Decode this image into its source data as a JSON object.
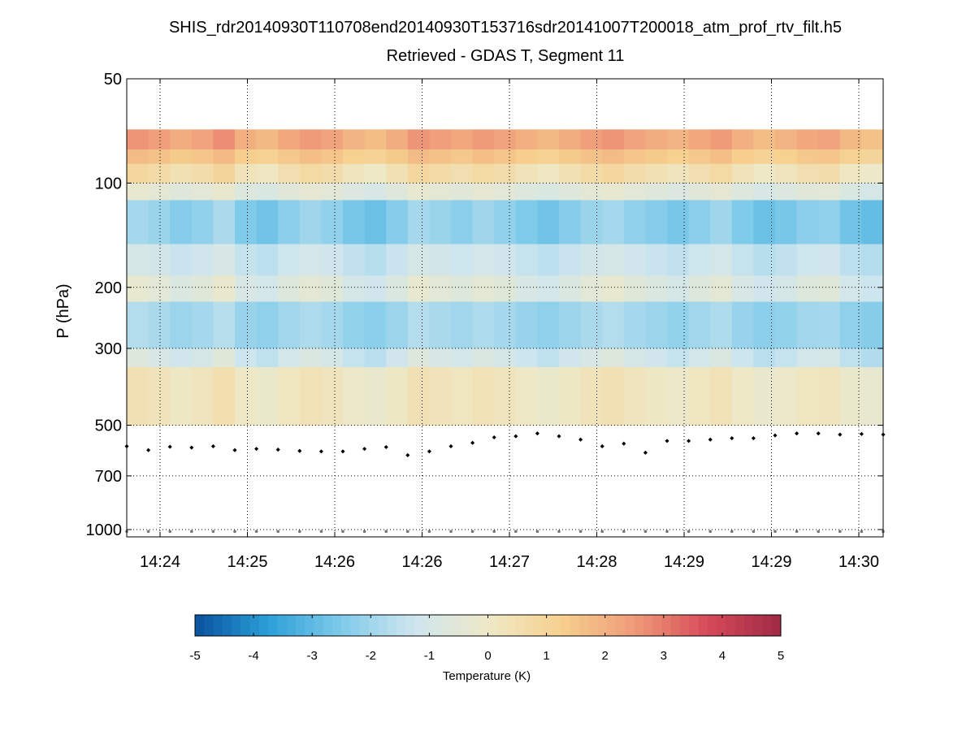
{
  "chart_data": {
    "type": "heatmap",
    "title": "SHIS_rdr20140930T110708end20140930T153716sdr20141007T200018_atm_prof_rtv_filt.h5",
    "subtitle": "Retrieved - GDAS T, Segment 11",
    "ylabel": "P (hPa)",
    "y_scale": "log",
    "y_direction": "reversed",
    "ylim": [
      50,
      1050
    ],
    "y_ticks": [
      50,
      100,
      200,
      300,
      500,
      700,
      1000
    ],
    "x_tick_labels": [
      "14:24",
      "14:25",
      "14:26",
      "14:26",
      "14:27",
      "14:28",
      "14:29",
      "14:29",
      "14:30"
    ],
    "grid": true,
    "colorbar": {
      "label": "Temperature (K)",
      "range": [
        -5,
        5
      ],
      "ticks": [
        -5,
        -4,
        -3,
        -2,
        -1,
        0,
        1,
        2,
        3,
        4,
        5
      ],
      "colormap": "blue-white-red",
      "colors": [
        "#08519c",
        "#2b9fd8",
        "#7fcbea",
        "#cfe6ee",
        "#eee8c6",
        "#f6d08e",
        "#ef9b78",
        "#d64a5a",
        "#9e2a44"
      ]
    },
    "field_bands": [
      {
        "p_range": [
          70,
          80
        ],
        "value": 2.3
      },
      {
        "p_range": [
          80,
          88
        ],
        "value": 1.5
      },
      {
        "p_range": [
          88,
          100
        ],
        "value": 0.6
      },
      {
        "p_range": [
          100,
          112
        ],
        "value": -0.5
      },
      {
        "p_range": [
          112,
          150
        ],
        "value": -2.2
      },
      {
        "p_range": [
          150,
          185
        ],
        "value": -1.2
      },
      {
        "p_range": [
          185,
          220
        ],
        "value": -0.6
      },
      {
        "p_range": [
          220,
          300
        ],
        "value": -1.9
      },
      {
        "p_range": [
          300,
          340
        ],
        "value": -1.0
      },
      {
        "p_range": [
          340,
          500
        ],
        "value": 0.2
      }
    ],
    "column_count": 35,
    "column_variation": [
      0.3,
      0.1,
      -0.2,
      0.0,
      0.4,
      -0.3,
      -0.5,
      -0.1,
      0.2,
      0.0,
      -0.4,
      -0.6,
      -0.2,
      0.3,
      0.1,
      -0.1,
      0.2,
      0.0,
      -0.3,
      -0.5,
      -0.2,
      0.1,
      0.3,
      0.0,
      -0.2,
      -0.4,
      -0.1,
      0.2,
      -0.3,
      -0.6,
      -0.4,
      -0.1,
      0.0,
      -0.5,
      -0.7
    ],
    "surface_pressure": [
      575,
      590,
      577,
      580,
      575,
      590,
      585,
      588,
      593,
      595,
      595,
      585,
      578,
      610,
      595,
      575,
      562,
      542,
      538,
      528,
      538,
      550,
      575,
      565,
      600,
      555,
      555,
      550,
      545,
      545,
      535,
      528,
      528,
      532,
      530,
      532
    ],
    "bottom_level_pressure": 1013
  }
}
